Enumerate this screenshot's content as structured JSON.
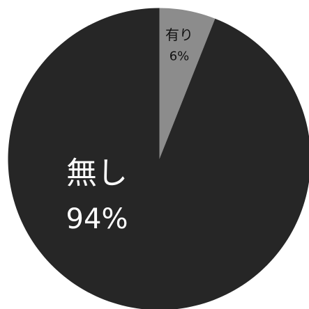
{
  "chart_data": {
    "type": "pie",
    "slices": [
      {
        "label": "有り",
        "value": 6,
        "value_label": "6%",
        "color": "#8c8c8c",
        "label_color": "#111111"
      },
      {
        "label": "無し",
        "value": 94,
        "value_label": "94%",
        "color": "#262626",
        "label_color": "#ffffff"
      }
    ],
    "start_angle": "top",
    "direction": "clockwise",
    "legend": "none"
  }
}
